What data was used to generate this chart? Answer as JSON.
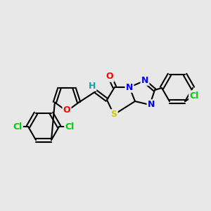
{
  "bg_color": "#e8e8e8",
  "bond_color": "#000000",
  "atom_colors": {
    "O": "#ff0000",
    "N": "#0000ff",
    "S": "#cccc00",
    "Cl_green": "#00cc00",
    "H": "#00aaaa",
    "C": "#000000"
  },
  "figsize": [
    3.0,
    3.0
  ],
  "dpi": 100
}
